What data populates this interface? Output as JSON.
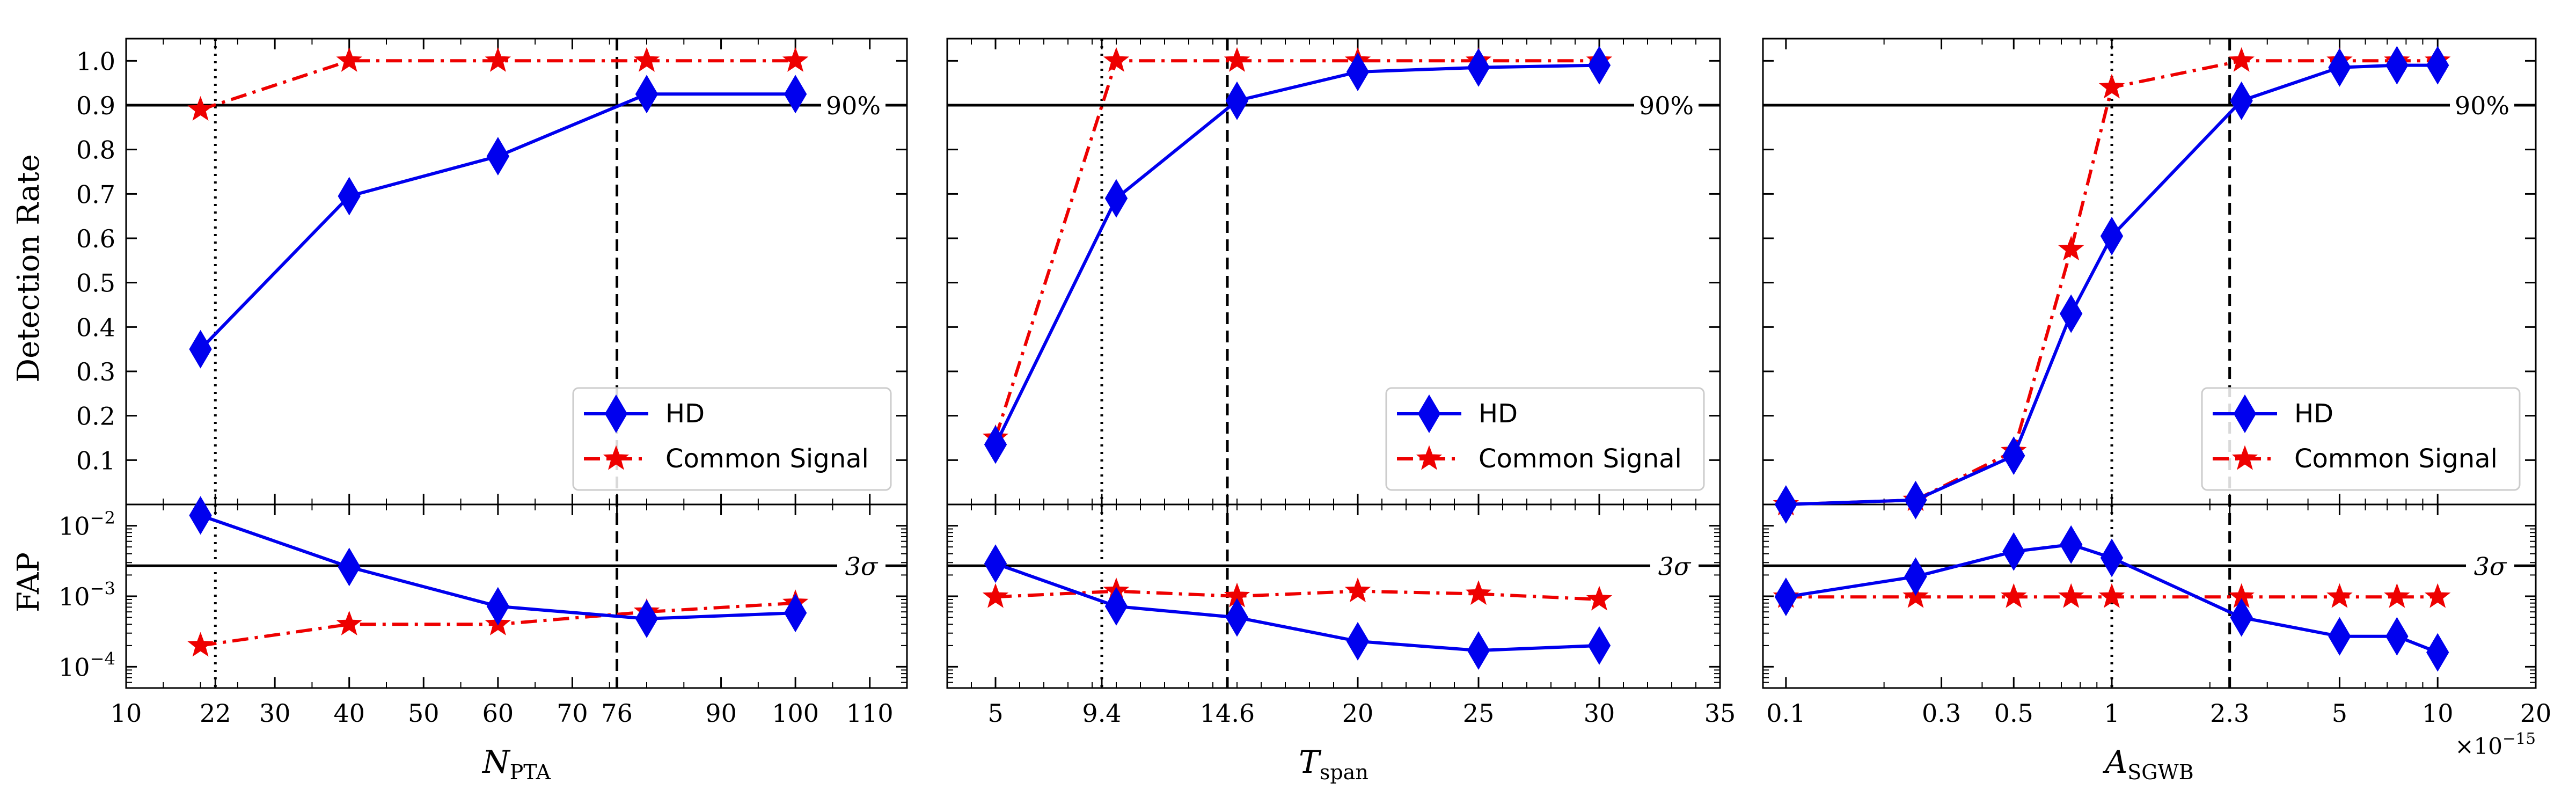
{
  "figure": {
    "shared_ylabel_top": "Detection Rate",
    "shared_ylabel_bottom": "FAP",
    "threshold_top_label": "90%",
    "threshold_bottom_label": "3σ",
    "colors": {
      "hd": "#0000ee",
      "common": "#ee0000",
      "axis": "#000000"
    }
  },
  "chart_data": [
    {
      "type": "line",
      "name": "npta",
      "xlabel_main": "N",
      "xlabel_sub": "PTA",
      "xscale": "linear",
      "xlim": [
        10,
        115
      ],
      "xticks": [
        {
          "v": 10,
          "label": "10"
        },
        {
          "v": 22,
          "label": "22"
        },
        {
          "v": 30,
          "label": "30"
        },
        {
          "v": 40,
          "label": "40"
        },
        {
          "v": 50,
          "label": "50"
        },
        {
          "v": 60,
          "label": "60"
        },
        {
          "v": 70,
          "label": "70"
        },
        {
          "v": 76,
          "label": "76"
        },
        {
          "v": 90,
          "label": "90"
        },
        {
          "v": 100,
          "label": "100"
        },
        {
          "v": 110,
          "label": "110"
        }
      ],
      "x_minor": [
        15,
        20,
        25,
        35,
        45,
        55,
        65,
        75,
        80,
        85,
        95,
        105,
        115
      ],
      "top": {
        "ylabel": "Detection Rate",
        "ylim": [
          0,
          1.05
        ],
        "yticks": [
          0.1,
          0.2,
          0.3,
          0.4,
          0.5,
          0.6,
          0.7,
          0.8,
          0.9,
          1.0
        ],
        "ytick_labels": [
          "0.1",
          "0.2",
          "0.3",
          "0.4",
          "0.5",
          "0.6",
          "0.7",
          "0.8",
          "0.9",
          "1.0"
        ],
        "show_yticklabels": true,
        "threshold": 0.9,
        "threshold_label": "90%",
        "series": [
          {
            "name": "HD",
            "marker": "diamond",
            "style": "solid",
            "x": [
              20,
              40,
              60,
              80,
              100
            ],
            "values": [
              0.35,
              0.695,
              0.785,
              0.925,
              0.925
            ]
          },
          {
            "name": "Common Signal",
            "marker": "star",
            "style": "dashdot",
            "x": [
              20,
              40,
              60,
              80,
              100
            ],
            "values": [
              0.89,
              1.0,
              1.0,
              1.0,
              1.0
            ]
          }
        ],
        "legend": {
          "position": "lower-right",
          "entries": [
            "HD",
            "Common Signal"
          ]
        }
      },
      "bottom": {
        "ylabel": "FAP",
        "yscale": "log",
        "ylim": [
          5e-05,
          0.02
        ],
        "yticks": [
          0.0001,
          0.001,
          0.01
        ],
        "ytick_labels": [
          {
            "base": "10",
            "exp": "−4"
          },
          {
            "base": "10",
            "exp": "−3"
          },
          {
            "base": "10",
            "exp": "−2"
          }
        ],
        "show_yticklabels": true,
        "threshold": 0.0027,
        "threshold_label": "3σ",
        "series": [
          {
            "name": "HD",
            "marker": "diamond",
            "style": "solid",
            "x": [
              20,
              40,
              60,
              80,
              100
            ],
            "values": [
              0.014,
              0.0026,
              0.00072,
              0.00048,
              0.00058
            ]
          },
          {
            "name": "Common Signal",
            "marker": "star",
            "style": "dashdot",
            "x": [
              20,
              40,
              60,
              80,
              100
            ],
            "values": [
              0.0002,
              0.0004,
              0.0004,
              0.0006,
              0.0008
            ]
          }
        ]
      },
      "vlines": [
        {
          "x": 22,
          "style": "dotted"
        },
        {
          "x": 76,
          "style": "dashed"
        }
      ]
    },
    {
      "type": "line",
      "name": "tspan",
      "xlabel_main": "T",
      "xlabel_sub": "span",
      "xscale": "linear",
      "xlim": [
        3,
        35
      ],
      "xticks": [
        {
          "v": 5,
          "label": "5"
        },
        {
          "v": 9.4,
          "label": "9.4"
        },
        {
          "v": 14.6,
          "label": "14.6"
        },
        {
          "v": 20,
          "label": "20"
        },
        {
          "v": 25,
          "label": "25"
        },
        {
          "v": 30,
          "label": "30"
        },
        {
          "v": 35,
          "label": "35"
        }
      ],
      "x_minor": [
        4,
        6,
        7,
        8,
        9,
        10,
        11,
        12,
        13,
        14,
        15,
        16,
        17,
        18,
        19,
        21,
        22,
        23,
        24,
        26,
        27,
        28,
        29,
        31,
        32,
        33,
        34
      ],
      "top": {
        "ylabel": "",
        "ylim": [
          0,
          1.05
        ],
        "yticks": [
          0.1,
          0.2,
          0.3,
          0.4,
          0.5,
          0.6,
          0.7,
          0.8,
          0.9,
          1.0
        ],
        "ytick_labels": [],
        "show_yticklabels": false,
        "threshold": 0.9,
        "threshold_label": "90%",
        "series": [
          {
            "name": "HD",
            "marker": "diamond",
            "style": "solid",
            "x": [
              5,
              10,
              15,
              20,
              25,
              30
            ],
            "values": [
              0.135,
              0.69,
              0.91,
              0.975,
              0.985,
              0.99
            ]
          },
          {
            "name": "Common Signal",
            "marker": "star",
            "style": "dashdot",
            "x": [
              5,
              10,
              15,
              20,
              25,
              30
            ],
            "values": [
              0.15,
              1.0,
              1.0,
              1.0,
              1.0,
              1.0
            ]
          }
        ],
        "legend": {
          "position": "lower-right",
          "entries": [
            "HD",
            "Common Signal"
          ]
        }
      },
      "bottom": {
        "ylabel": "",
        "yscale": "log",
        "ylim": [
          5e-05,
          0.02
        ],
        "yticks": [
          0.0001,
          0.001,
          0.01
        ],
        "ytick_labels": [],
        "show_yticklabels": false,
        "threshold": 0.0027,
        "threshold_label": "3σ",
        "series": [
          {
            "name": "HD",
            "marker": "diamond",
            "style": "solid",
            "x": [
              5,
              10,
              15,
              20,
              25,
              30
            ],
            "values": [
              0.0029,
              0.00072,
              0.0005,
              0.00023,
              0.00017,
              0.0002
            ]
          },
          {
            "name": "Common Signal",
            "marker": "star",
            "style": "dashdot",
            "x": [
              5,
              10,
              15,
              20,
              25,
              30
            ],
            "values": [
              0.00098,
              0.00118,
              0.001,
              0.00118,
              0.00108,
              0.0009
            ]
          }
        ]
      },
      "vlines": [
        {
          "x": 9.4,
          "style": "dotted"
        },
        {
          "x": 14.6,
          "style": "dashed"
        }
      ]
    },
    {
      "type": "line",
      "name": "asgwb",
      "xlabel_main": "A",
      "xlabel_sub": "SGWB",
      "xscale": "log",
      "xlim": [
        0.085,
        20
      ],
      "offset_base": "×10",
      "offset_exp": "−15",
      "xticks": [
        {
          "v": 0.1,
          "label": "0.1"
        },
        {
          "v": 0.3,
          "label": "0.3"
        },
        {
          "v": 0.5,
          "label": "0.5"
        },
        {
          "v": 1,
          "label": "1"
        },
        {
          "v": 2.3,
          "label": "2.3"
        },
        {
          "v": 5,
          "label": "5"
        },
        {
          "v": 10,
          "label": "10"
        },
        {
          "v": 20,
          "label": "20"
        }
      ],
      "x_minor": [
        0.2,
        0.4,
        0.6,
        0.7,
        0.8,
        0.9,
        2,
        3,
        4,
        6,
        7,
        8,
        9
      ],
      "top": {
        "ylabel": "",
        "ylim": [
          0,
          1.05
        ],
        "yticks": [
          0.1,
          0.2,
          0.3,
          0.4,
          0.5,
          0.6,
          0.7,
          0.8,
          0.9,
          1.0
        ],
        "ytick_labels": [],
        "show_yticklabels": false,
        "threshold": 0.9,
        "threshold_label": "90%",
        "series": [
          {
            "name": "HD",
            "marker": "diamond",
            "style": "solid",
            "x": [
              0.1,
              0.25,
              0.5,
              0.75,
              1,
              2.5,
              5,
              7.5,
              10
            ],
            "values": [
              0.0,
              0.01,
              0.11,
              0.43,
              0.605,
              0.91,
              0.985,
              0.99,
              0.99
            ]
          },
          {
            "name": "Common Signal",
            "marker": "star",
            "style": "dashdot",
            "x": [
              0.1,
              0.25,
              0.5,
              0.75,
              1,
              2.5,
              5,
              7.5,
              10
            ],
            "values": [
              0.0,
              0.01,
              0.12,
              0.575,
              0.94,
              1.0,
              1.0,
              1.0,
              1.0
            ]
          }
        ],
        "legend": {
          "position": "lower-right",
          "entries": [
            "HD",
            "Common Signal"
          ]
        }
      },
      "bottom": {
        "ylabel": "",
        "yscale": "log",
        "ylim": [
          5e-05,
          0.02
        ],
        "yticks": [
          0.0001,
          0.001,
          0.01
        ],
        "ytick_labels": [],
        "show_yticklabels": false,
        "threshold": 0.0027,
        "threshold_label": "3σ",
        "series": [
          {
            "name": "HD",
            "marker": "diamond",
            "style": "solid",
            "x": [
              0.1,
              0.25,
              0.5,
              0.75,
              1,
              2.5,
              5,
              7.5,
              10
            ],
            "values": [
              0.00098,
              0.0019,
              0.0043,
              0.0054,
              0.0035,
              0.0005,
              0.00027,
              0.00027,
              0.00016
            ]
          },
          {
            "name": "Common Signal",
            "marker": "star",
            "style": "dashdot",
            "x": [
              0.1,
              0.25,
              0.5,
              0.75,
              1,
              2.5,
              5,
              7.5,
              10
            ],
            "values": [
              0.00098,
              0.00098,
              0.00098,
              0.00098,
              0.00098,
              0.00098,
              0.00098,
              0.00098,
              0.00098
            ]
          }
        ]
      },
      "vlines": [
        {
          "x": 1,
          "style": "dotted"
        },
        {
          "x": 2.3,
          "style": "dashed"
        }
      ]
    }
  ]
}
